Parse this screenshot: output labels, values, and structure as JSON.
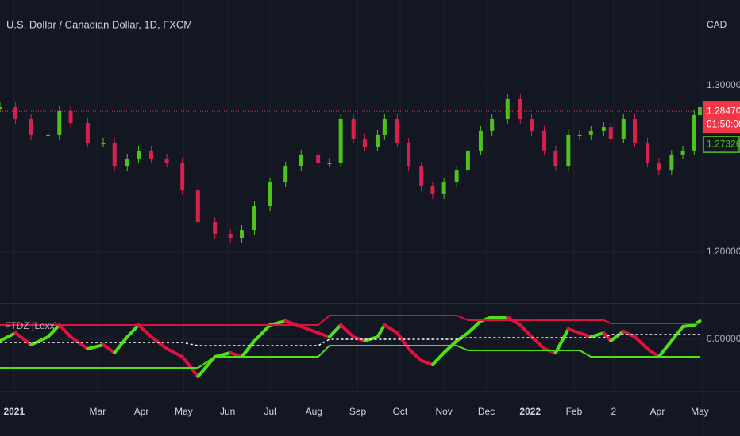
{
  "chart_data": [
    {
      "type": "candlestick",
      "title": "U.S. Dollar / Canadian Dollar, 1D, FXCM",
      "y_axis_label": "CAD",
      "x": [
        -10,
        1,
        12,
        24,
        32,
        40,
        52,
        63,
        71,
        80,
        88,
        97,
        108,
        119,
        130,
        142,
        153,
        161,
        170,
        181,
        192,
        203,
        215,
        223,
        231,
        240,
        248,
        257,
        262,
        271,
        279,
        288,
        296,
        304,
        313,
        321,
        330,
        338,
        349,
        358,
        366,
        375,
        383,
        392,
        400,
        408,
        417,
        422,
        431,
        439,
        448,
        456,
        465,
        473,
        481,
        485
      ],
      "values": [
        1.2871,
        1.28,
        1.2705,
        1.2705,
        1.2848,
        1.2776,
        1.2657,
        1.2657,
        1.2514,
        1.2562,
        1.261,
        1.2562,
        1.2538,
        1.2371,
        1.2181,
        1.211,
        1.2086,
        1.2133,
        1.2276,
        1.2419,
        1.2514,
        1.2586,
        1.2538,
        1.2538,
        1.28,
        1.2681,
        1.2633,
        1.2705,
        1.28,
        1.2657,
        1.2514,
        1.2395,
        1.2348,
        1.2419,
        1.249,
        1.261,
        1.2729,
        1.28,
        1.2919,
        1.28,
        1.2729,
        1.261,
        1.2514,
        1.2705,
        1.2705,
        1.2729,
        1.2752,
        1.2681,
        1.28,
        1.2657,
        1.2538,
        1.249,
        1.2586,
        1.261,
        1.2824,
        1.2871
      ],
      "up_color": "#4fc21e",
      "down_color": "#d8204f",
      "xlim": [
        -10,
        487
      ],
      "xticks": [
        {
          "value": 0,
          "label": "2021"
        },
        {
          "value": 59,
          "label": "Mar"
        },
        {
          "value": 90,
          "label": "Apr"
        },
        {
          "value": 120,
          "label": "May"
        },
        {
          "value": 151,
          "label": "Jun"
        },
        {
          "value": 181,
          "label": "Jul"
        },
        {
          "value": 212,
          "label": "Aug"
        },
        {
          "value": 243,
          "label": "Sep"
        },
        {
          "value": 273,
          "label": "Oct"
        },
        {
          "value": 304,
          "label": "Nov"
        },
        {
          "value": 334,
          "label": "Dec"
        },
        {
          "value": 365,
          "label": "2022"
        },
        {
          "value": 396,
          "label": "Feb"
        },
        {
          "value": 424,
          "label": "2"
        },
        {
          "value": 455,
          "label": "Apr"
        },
        {
          "value": 485,
          "label": "May"
        }
      ],
      "ylim": [
        1.1705,
        1.3514
      ],
      "yticks": [
        {
          "value": 1.3,
          "label": "1.30000"
        },
        {
          "value": 1.2,
          "label": "1.20000"
        }
      ],
      "grid": true,
      "last_price": {
        "value": 1.2847,
        "label": "1.28470",
        "color": "#f23645"
      },
      "countdown": "01:50:00",
      "marker": {
        "value": 1.27326,
        "label": "1.27326",
        "color": "#4fc21e"
      }
    },
    {
      "type": "line",
      "title": "FTDZ [Loxx]",
      "x": [
        -10,
        1,
        12,
        24,
        32,
        40,
        52,
        63,
        71,
        80,
        88,
        97,
        108,
        119,
        130,
        142,
        153,
        161,
        170,
        181,
        192,
        203,
        215,
        223,
        231,
        240,
        248,
        257,
        262,
        271,
        279,
        288,
        296,
        304,
        313,
        321,
        330,
        338,
        349,
        358,
        366,
        375,
        383,
        392,
        400,
        408,
        417,
        422,
        431,
        439,
        448,
        456,
        465,
        473,
        481,
        485
      ],
      "xlim": [
        -10,
        487
      ],
      "ylim": [
        -1.6,
        1.125
      ],
      "yticks": [
        {
          "value": 0,
          "label": "0.00000"
        }
      ],
      "series": [
        {
          "up_color": "#4ee11a",
          "down_color": "#e0103f",
          "width": 4,
          "values": [
            -0.05,
            0.2,
            -0.175,
            0.075,
            0.45,
            0.075,
            -0.3,
            -0.175,
            -0.425,
            0.075,
            0.45,
            0.075,
            -0.3,
            -0.55,
            -1.175,
            -0.55,
            -0.425,
            -0.55,
            -0.05,
            0.45,
            0.575,
            0.4,
            0.2,
            0.075,
            0.45,
            0.075,
            -0.05,
            0.075,
            0.45,
            0.2,
            -0.3,
            -0.675,
            -0.8,
            -0.425,
            -0.05,
            0.2,
            0.575,
            0.7,
            0.7,
            0.45,
            0.075,
            -0.3,
            -0.425,
            0.325,
            0.2,
            0.075,
            0.2,
            -0.05,
            0.25,
            0.075,
            -0.3,
            -0.55,
            -0.05,
            0.4,
            0.45,
            0.575
          ]
        },
        {
          "color": "#e0103f",
          "width": 2,
          "values": [
            0.45,
            0.45,
            0.45,
            0.45,
            0.45,
            0.45,
            0.45,
            0.45,
            0.45,
            0.45,
            0.45,
            0.45,
            0.45,
            0.45,
            0.45,
            0.45,
            0.45,
            0.45,
            0.45,
            0.45,
            0.45,
            0.45,
            0.45,
            0.75,
            0.75,
            0.75,
            0.75,
            0.75,
            0.75,
            0.75,
            0.75,
            0.75,
            0.75,
            0.75,
            0.75,
            0.6,
            0.6,
            0.6,
            0.6,
            0.6,
            0.6,
            0.6,
            0.6,
            0.6,
            0.6,
            0.6,
            0.6,
            0.5,
            0.5,
            0.5,
            0.5,
            0.5,
            0.5,
            0.5,
            0.5,
            0.5
          ]
        },
        {
          "color": "#4ee11a",
          "width": 2,
          "values": [
            -0.9,
            -0.9,
            -0.9,
            -0.9,
            -0.9,
            -0.9,
            -0.9,
            -0.9,
            -0.9,
            -0.9,
            -0.9,
            -0.9,
            -0.9,
            -0.9,
            -0.9,
            -0.55,
            -0.55,
            -0.55,
            -0.55,
            -0.55,
            -0.55,
            -0.55,
            -0.55,
            -0.2,
            -0.2,
            -0.2,
            -0.2,
            -0.2,
            -0.2,
            -0.2,
            -0.2,
            -0.2,
            -0.2,
            -0.2,
            -0.2,
            -0.35,
            -0.35,
            -0.35,
            -0.35,
            -0.35,
            -0.35,
            -0.35,
            -0.35,
            -0.35,
            -0.35,
            -0.55,
            -0.55,
            -0.55,
            -0.55,
            -0.55,
            -0.55,
            -0.55,
            -0.55,
            -0.55,
            -0.55,
            -0.55
          ]
        },
        {
          "color": "#ffffff",
          "width": 1.5,
          "dashed": true,
          "values": [
            -0.1,
            -0.1,
            -0.1,
            -0.1,
            -0.1,
            -0.1,
            -0.1,
            -0.1,
            -0.1,
            -0.1,
            -0.1,
            -0.1,
            -0.1,
            -0.1,
            -0.2,
            -0.2,
            -0.2,
            -0.2,
            -0.2,
            -0.2,
            -0.2,
            -0.2,
            -0.2,
            0.0,
            0.0,
            0.0,
            0.0,
            0.0,
            0.0,
            0.0,
            0.0,
            0.0,
            0.0,
            0.0,
            0.0,
            0.05,
            0.05,
            0.05,
            0.05,
            0.05,
            0.05,
            0.05,
            0.05,
            0.05,
            0.05,
            0.05,
            0.05,
            0.15,
            0.15,
            0.15,
            0.15,
            0.15,
            0.15,
            0.15,
            0.15,
            0.15
          ]
        }
      ]
    }
  ]
}
